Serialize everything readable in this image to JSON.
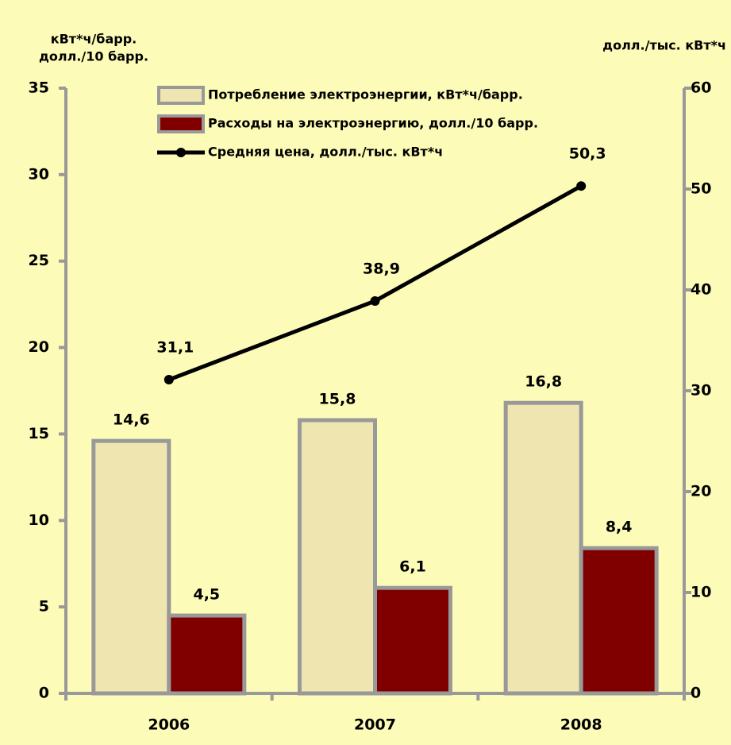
{
  "chart_data": {
    "type": "bar",
    "ylabel": [
      "кВт*ч/барр.",
      "долл./10 барр."
    ],
    "y2label": "долл./тыс. кВт*ч",
    "categories": [
      "2006",
      "2007",
      "2008"
    ],
    "series": [
      {
        "name": "Потребление электроэнергии, кВт*ч/барр.",
        "color": "#efe5b1",
        "type": "bar",
        "values": [
          14.6,
          15.8,
          16.8
        ],
        "value_labels": [
          "14,6",
          "15,8",
          "16,8"
        ]
      },
      {
        "name": "Расходы на электроэнергию, долл./10 барр.",
        "color": "#800000",
        "type": "bar",
        "values": [
          4.5,
          6.1,
          8.4
        ],
        "value_labels": [
          "4,5",
          "6,1",
          "8,4"
        ]
      },
      {
        "name": "Средняя цена, долл./тыс. кВт*ч",
        "color": "#000000",
        "type": "line",
        "axis": "y2",
        "values": [
          31.1,
          38.9,
          50.3
        ],
        "value_labels": [
          "31,1",
          "38,9",
          "50,3"
        ]
      }
    ],
    "ylim": [
      0,
      35
    ],
    "yticks": [
      0,
      5,
      10,
      15,
      20,
      25,
      30,
      35
    ],
    "y2lim": [
      0,
      60
    ],
    "y2ticks": [
      0,
      10,
      20,
      30,
      40,
      50,
      60
    ],
    "bar_edge_color": "#999999",
    "axis_color": "#999999"
  }
}
